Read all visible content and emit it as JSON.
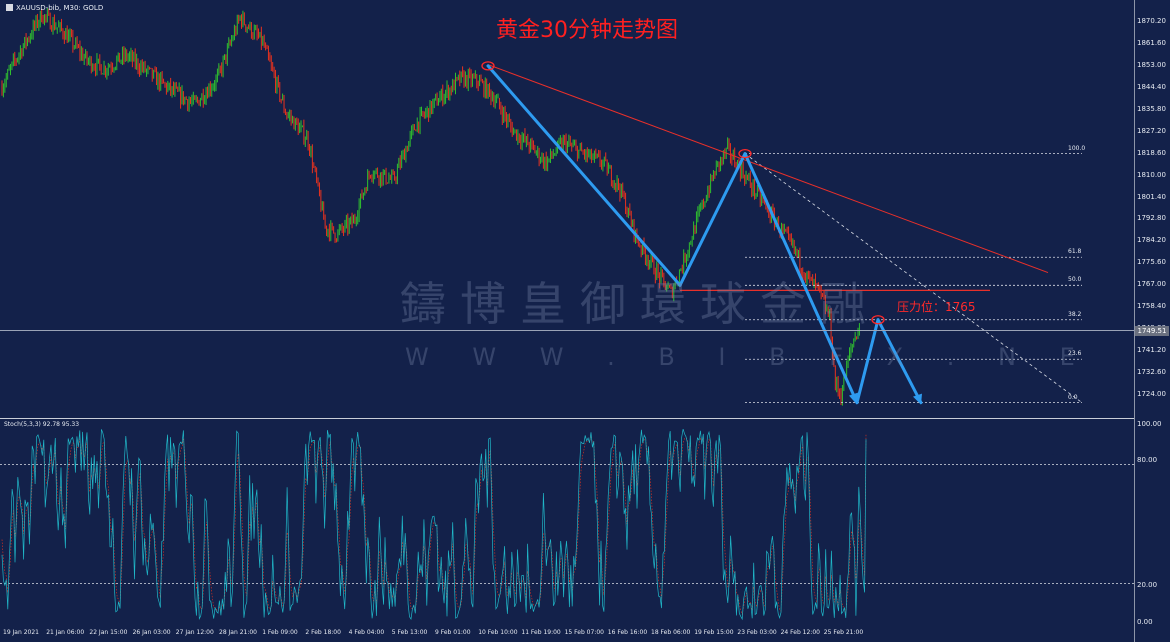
{
  "header": {
    "symbol_line": "XAUUSD-bib, M30:  GOLD"
  },
  "title": "黄金30分钟走势图",
  "watermark": {
    "name": "鑄博皇御環球金融",
    "url": "W W W . B I B F X . N E"
  },
  "annotation": "压力位：1765",
  "current_price": "1749.51",
  "stoch_header": "Stoch(5,3,3) 92.78 95.33",
  "chart_data": [
    {
      "type": "candlestick",
      "title": "黄金30分钟走势图",
      "yticks": [
        "1870.20",
        "1861.60",
        "1853.00",
        "1844.40",
        "1835.80",
        "1827.20",
        "1818.60",
        "1810.00",
        "1801.40",
        "1792.80",
        "1784.20",
        "1775.60",
        "1767.00",
        "1758.40",
        "1749.80",
        "1741.20",
        "1732.60",
        "1724.00"
      ],
      "ylim": [
        1719,
        1876
      ],
      "xticks": [
        "19 Jan 2021",
        "21 Jan 06:00",
        "22 Jan 15:00",
        "26 Jan 03:00",
        "27 Jan 12:00",
        "28 Jan 21:00",
        "1 Feb 09:00",
        "2 Feb 18:00",
        "4 Feb 04:00",
        "5 Feb 13:00",
        "9 Feb 01:00",
        "10 Feb 10:00",
        "11 Feb 19:00",
        "15 Feb 07:00",
        "16 Feb 16:00",
        "18 Feb 06:00",
        "19 Feb 15:00",
        "23 Feb 03:00",
        "24 Feb 12:00",
        "25 Feb 21:00"
      ],
      "price_path": [
        [
          0,
          1845
        ],
        [
          6,
          1858
        ],
        [
          14,
          1873
        ],
        [
          22,
          1866
        ],
        [
          30,
          1855
        ],
        [
          36,
          1852
        ],
        [
          44,
          1857
        ],
        [
          52,
          1850
        ],
        [
          60,
          1843
        ],
        [
          68,
          1838
        ],
        [
          76,
          1848
        ],
        [
          84,
          1872
        ],
        [
          92,
          1862
        ],
        [
          100,
          1835
        ],
        [
          108,
          1824
        ],
        [
          114,
          1790
        ],
        [
          118,
          1787
        ],
        [
          124,
          1792
        ],
        [
          130,
          1812
        ],
        [
          138,
          1808
        ],
        [
          146,
          1830
        ],
        [
          154,
          1840
        ],
        [
          162,
          1848
        ],
        [
          168,
          1847
        ],
        [
          174,
          1840
        ],
        [
          180,
          1828
        ],
        [
          186,
          1822
        ],
        [
          192,
          1815
        ],
        [
          198,
          1823
        ],
        [
          206,
          1818
        ],
        [
          212,
          1815
        ],
        [
          218,
          1805
        ],
        [
          224,
          1785
        ],
        [
          232,
          1770
        ],
        [
          236,
          1764
        ],
        [
          240,
          1775
        ],
        [
          246,
          1795
        ],
        [
          252,
          1813
        ],
        [
          256,
          1820
        ],
        [
          262,
          1810
        ],
        [
          268,
          1800
        ],
        [
          274,
          1790
        ],
        [
          280,
          1780
        ],
        [
          284,
          1770
        ],
        [
          288,
          1765
        ],
        [
          292,
          1754
        ],
        [
          294,
          1728
        ],
        [
          296,
          1724
        ],
        [
          298,
          1735
        ],
        [
          300,
          1744
        ],
        [
          302,
          1750
        ]
      ],
      "fibonacci": [
        {
          "level": "100.0",
          "price": 1818.6
        },
        {
          "level": "61.8",
          "price": 1778.0
        },
        {
          "level": "50.0",
          "price": 1767.0
        },
        {
          "level": "38.2",
          "price": 1753.5
        },
        {
          "level": "23.6",
          "price": 1738.0
        },
        {
          "level": "0.0",
          "price": 1721.0
        }
      ],
      "resistance_level": 1765,
      "trendline": [
        [
          1853,
          "10 Feb 10:00"
        ],
        [
          1818.6,
          "23 Feb 03:00"
        ]
      ],
      "projection_path": [
        [
          1853,
          "10 Feb"
        ],
        [
          1767,
          "18 Feb"
        ],
        [
          1818.6,
          "23 Feb"
        ],
        [
          1721,
          "26 Feb"
        ],
        [
          1753.5,
          "26 Feb"
        ],
        [
          1721,
          "26 Feb"
        ]
      ]
    },
    {
      "type": "line",
      "title": "Stoch(5,3,3)",
      "ylim": [
        0,
        100
      ],
      "yticks": [
        "100.00",
        "80.00",
        "20.00",
        "0.00"
      ],
      "levels": [
        80,
        20
      ],
      "last_values": [
        92.78,
        95.33
      ]
    }
  ],
  "colors": {
    "background": "#13214a",
    "bull": "#2fbf2f",
    "bear": "#e8321e",
    "trendline": "#e8302a",
    "arrows": "#2e9bf0",
    "stoch_main": "#20b7c8",
    "stoch_signal": "#e8321e"
  }
}
